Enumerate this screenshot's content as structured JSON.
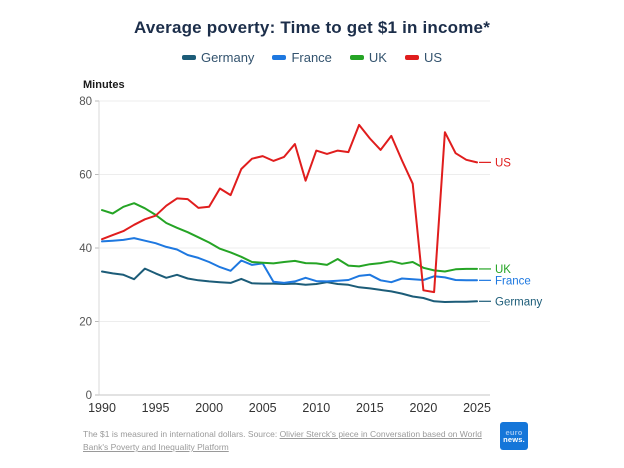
{
  "title": "Average poverty: Time to get $1 in income*",
  "y_axis_label": "Minutes",
  "footnote": {
    "prefix": "The $1 is measured in international dollars. Source: ",
    "link_text": "Olivier Sterck's piece in Conversation based on World Bank's Poverty and Inequality Platform"
  },
  "logo": {
    "line1": "euro",
    "line2": "news.",
    "background": "#1576d9"
  },
  "chart_data": {
    "type": "line",
    "title": "Average poverty: Time to get $1 in income*",
    "xlabel": "",
    "ylabel": "Minutes",
    "ylim": [
      0,
      80
    ],
    "y_ticks": [
      0,
      20,
      40,
      60,
      80
    ],
    "x_tick_labels": [
      "1990",
      "1995",
      "2000",
      "2005",
      "2010",
      "2015",
      "2020",
      "2025"
    ],
    "grid": "horizontal",
    "legend_position": "top",
    "years": [
      1990,
      1991,
      1992,
      1993,
      1994,
      1995,
      1996,
      1997,
      1998,
      1999,
      2000,
      2001,
      2002,
      2003,
      2004,
      2005,
      2006,
      2007,
      2008,
      2009,
      2010,
      2011,
      2012,
      2013,
      2014,
      2015,
      2016,
      2017,
      2018,
      2019,
      2020,
      2021,
      2022,
      2023,
      2024,
      2025
    ],
    "series": [
      {
        "name": "Germany",
        "color": "#1c5c78",
        "end_label": "Germany",
        "values": [
          33.6,
          33.1,
          32.7,
          31.5,
          34.4,
          33.1,
          31.9,
          32.7,
          31.7,
          31.2,
          30.9,
          30.7,
          30.5,
          31.6,
          30.4,
          30.3,
          30.3,
          30.2,
          30.3,
          30.0,
          30.2,
          30.7,
          30.2,
          30.0,
          29.3,
          29.0,
          28.6,
          28.2,
          27.6,
          26.8,
          26.4,
          25.5,
          25.3,
          25.4,
          25.4,
          25.5
        ]
      },
      {
        "name": "France",
        "color": "#1e78e0",
        "end_label": "France",
        "values": [
          41.8,
          42.0,
          42.2,
          42.7,
          42.0,
          41.3,
          40.3,
          39.6,
          38.1,
          37.3,
          36.2,
          34.8,
          33.8,
          36.6,
          35.4,
          35.8,
          30.8,
          30.5,
          30.9,
          31.9,
          31.0,
          30.9,
          31.1,
          31.3,
          32.4,
          32.7,
          31.2,
          30.7,
          31.7,
          31.5,
          31.3,
          32.3,
          32.0,
          31.3,
          31.2,
          31.2
        ]
      },
      {
        "name": "UK",
        "color": "#25a425",
        "end_label": "UK",
        "values": [
          50.3,
          49.4,
          51.2,
          52.2,
          50.8,
          49.0,
          46.8,
          45.5,
          44.3,
          42.9,
          41.5,
          39.8,
          38.8,
          37.6,
          36.2,
          36.0,
          35.8,
          36.2,
          36.5,
          35.9,
          35.8,
          35.4,
          37.0,
          35.2,
          35.0,
          35.6,
          35.9,
          36.4,
          35.7,
          36.2,
          34.6,
          33.9,
          33.6,
          34.2,
          34.3,
          34.3
        ]
      },
      {
        "name": "US",
        "color": "#e01d1d",
        "end_label": "US",
        "values": [
          42.4,
          43.5,
          44.6,
          46.3,
          47.8,
          48.8,
          51.5,
          53.5,
          53.3,
          50.9,
          51.2,
          56.2,
          54.4,
          61.5,
          64.3,
          65.0,
          63.7,
          64.8,
          68.3,
          58.3,
          66.5,
          65.6,
          66.5,
          66.1,
          73.5,
          69.8,
          66.7,
          70.5,
          63.8,
          57.5,
          28.5,
          28.0,
          71.5,
          65.8,
          64.0,
          63.3
        ]
      }
    ]
  }
}
